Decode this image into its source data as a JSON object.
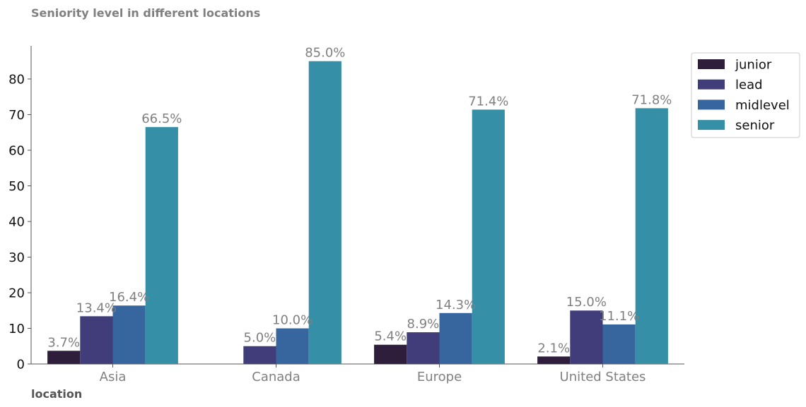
{
  "chart_data": {
    "type": "bar",
    "title": "Seniority level in different locations",
    "xlabel": "location",
    "ylabel": "",
    "categories": [
      "Asia",
      "Canada",
      "Europe",
      "United States"
    ],
    "series": [
      {
        "name": "junior",
        "color": "#2e1e3b",
        "values": [
          3.7,
          0,
          5.4,
          2.1
        ],
        "labels": [
          "3.7%",
          "",
          "5.4%",
          "2.1%"
        ]
      },
      {
        "name": "lead",
        "color": "#413d7b",
        "values": [
          13.4,
          5.0,
          8.9,
          15.0
        ],
        "labels": [
          "13.4%",
          "5.0%",
          "8.9%",
          "15.0%"
        ]
      },
      {
        "name": "midlevel",
        "color": "#37659e",
        "values": [
          16.4,
          10.0,
          14.3,
          11.1
        ],
        "labels": [
          "16.4%",
          "10.0%",
          "14.3%",
          "11.1%"
        ]
      },
      {
        "name": "senior",
        "color": "#348fa7",
        "values": [
          66.5,
          85.0,
          71.4,
          71.8
        ],
        "labels": [
          "66.5%",
          "85.0%",
          "71.4%",
          "71.8%"
        ]
      }
    ],
    "yticks": [
      0,
      10,
      20,
      30,
      40,
      50,
      60,
      70,
      80
    ],
    "ylim": [
      0,
      89.3
    ],
    "grid": false,
    "legend_position": "top-right outside"
  }
}
